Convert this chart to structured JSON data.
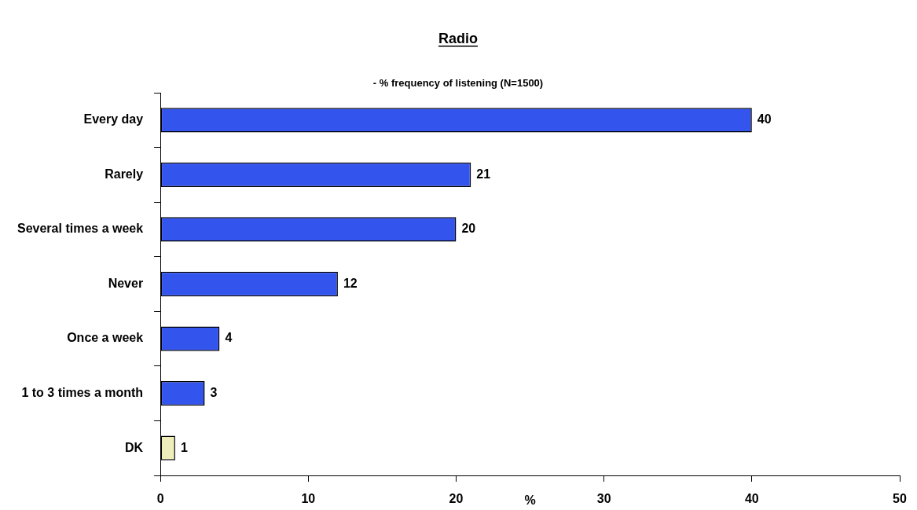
{
  "chart_data": {
    "type": "bar",
    "orientation": "horizontal",
    "title": "Radio",
    "subtitle": "- % frequency of listening (N=1500)",
    "xlabel": "%",
    "categories": [
      "Every day",
      "Rarely",
      "Several times a week",
      "Never",
      "Once a week",
      "1 to 3 times a month",
      "DK"
    ],
    "values": [
      40,
      21,
      20,
      12,
      4,
      3,
      1
    ],
    "colors": [
      "#3355ee",
      "#3355ee",
      "#3355ee",
      "#3355ee",
      "#3355ee",
      "#3355ee",
      "#eeeebb"
    ],
    "xlim": [
      0,
      50
    ],
    "xticks": [
      0,
      10,
      20,
      30,
      40,
      50
    ],
    "grid": false,
    "legend": false,
    "data_labels": true
  }
}
